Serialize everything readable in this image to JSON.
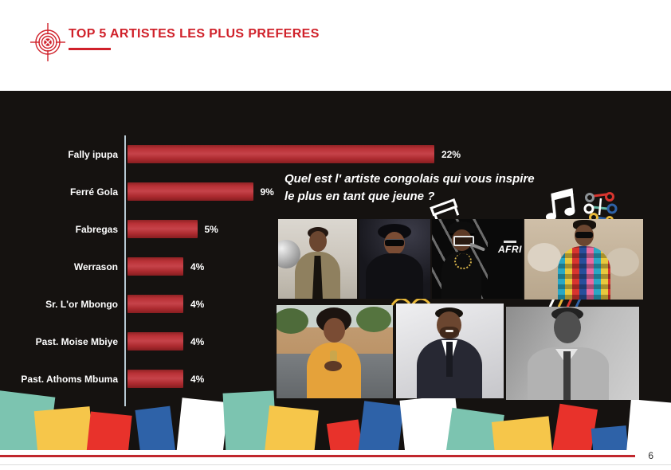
{
  "header": {
    "title": "TOP 5 ARTISTES LES PLUS PREFERES",
    "accent_color": "#d0212a"
  },
  "chart_data": {
    "type": "bar",
    "orientation": "horizontal",
    "title": "",
    "categories": [
      "Fally ipupa",
      "Ferré Gola",
      "Fabregas",
      "Werrason",
      "Sr. L'or Mbongo",
      "Past. Moise Mbiye",
      "Past. Athoms Mbuma"
    ],
    "values": [
      22,
      9,
      5,
      4,
      4,
      4,
      4
    ],
    "value_labels": [
      "22%",
      "9%",
      "5%",
      "4%",
      "4%",
      "4%",
      "4%"
    ],
    "value_suffix": "%",
    "xlim": [
      0,
      22
    ],
    "grid": false,
    "legend": false,
    "bar_color": "#b52f35",
    "axis_color": "#b7c9d3",
    "label_color": "#ffffff",
    "background": "#151210"
  },
  "question": {
    "line1": "Quel est l' artiste congolais qui vous inspire",
    "line2": "le plus en tant que jeune ?"
  },
  "photos": {
    "overlay_text": "AFRI"
  },
  "decor": {
    "palette": {
      "teal": "#7cc4b0",
      "yellow": "#f6c64a",
      "red": "#e8322b",
      "blue": "#2e62a8",
      "white": "#ffffff"
    },
    "icons": [
      "target-icon",
      "music-note-icon",
      "music-doodle-icon",
      "mini-note-icon"
    ]
  },
  "footer": {
    "page_number": "6",
    "line_color": "#c1272d"
  }
}
